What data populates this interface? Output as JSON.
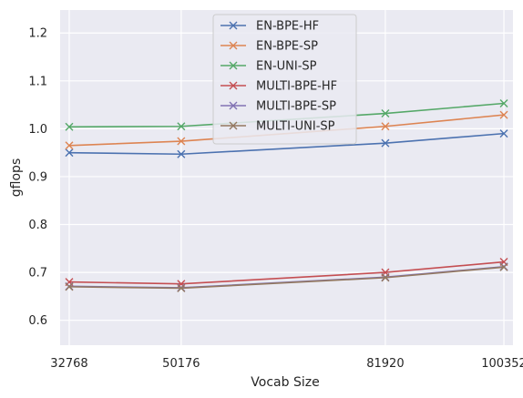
{
  "chart_data": {
    "type": "line",
    "xlabel": "Vocab Size",
    "ylabel": "gflops",
    "x": [
      32768,
      50176,
      81920,
      100352
    ],
    "x_tick_labels": [
      "32768",
      "50176",
      "81920",
      "100352"
    ],
    "y_ticks": [
      0.6,
      0.7,
      0.8,
      0.9,
      1.0,
      1.1,
      1.2
    ],
    "y_tick_labels": [
      "0.6",
      "0.7",
      "0.8",
      "0.9",
      "1.0",
      "1.1",
      "1.2"
    ],
    "xlim": [
      31354,
      101766
    ],
    "ylim": [
      0.548,
      1.248
    ],
    "grid": true,
    "legend_position": "top-center",
    "marker": "x",
    "series": [
      {
        "name": "EN-BPE-HF",
        "color": "#4c72b0",
        "values": [
          0.95,
          0.947,
          0.97,
          0.99
        ]
      },
      {
        "name": "EN-BPE-SP",
        "color": "#dd8452",
        "values": [
          0.965,
          0.974,
          1.005,
          1.029
        ]
      },
      {
        "name": "EN-UNI-SP",
        "color": "#55a868",
        "values": [
          1.004,
          1.005,
          1.032,
          1.053
        ]
      },
      {
        "name": "MULTI-BPE-HF",
        "color": "#c44e52",
        "values": [
          0.68,
          0.676,
          0.7,
          0.722
        ]
      },
      {
        "name": "MULTI-BPE-SP",
        "color": "#8172b3",
        "values": [
          0.671,
          0.668,
          0.69,
          0.712
        ]
      },
      {
        "name": "MULTI-UNI-SP",
        "color": "#937860",
        "values": [
          0.67,
          0.667,
          0.689,
          0.711
        ]
      }
    ]
  }
}
